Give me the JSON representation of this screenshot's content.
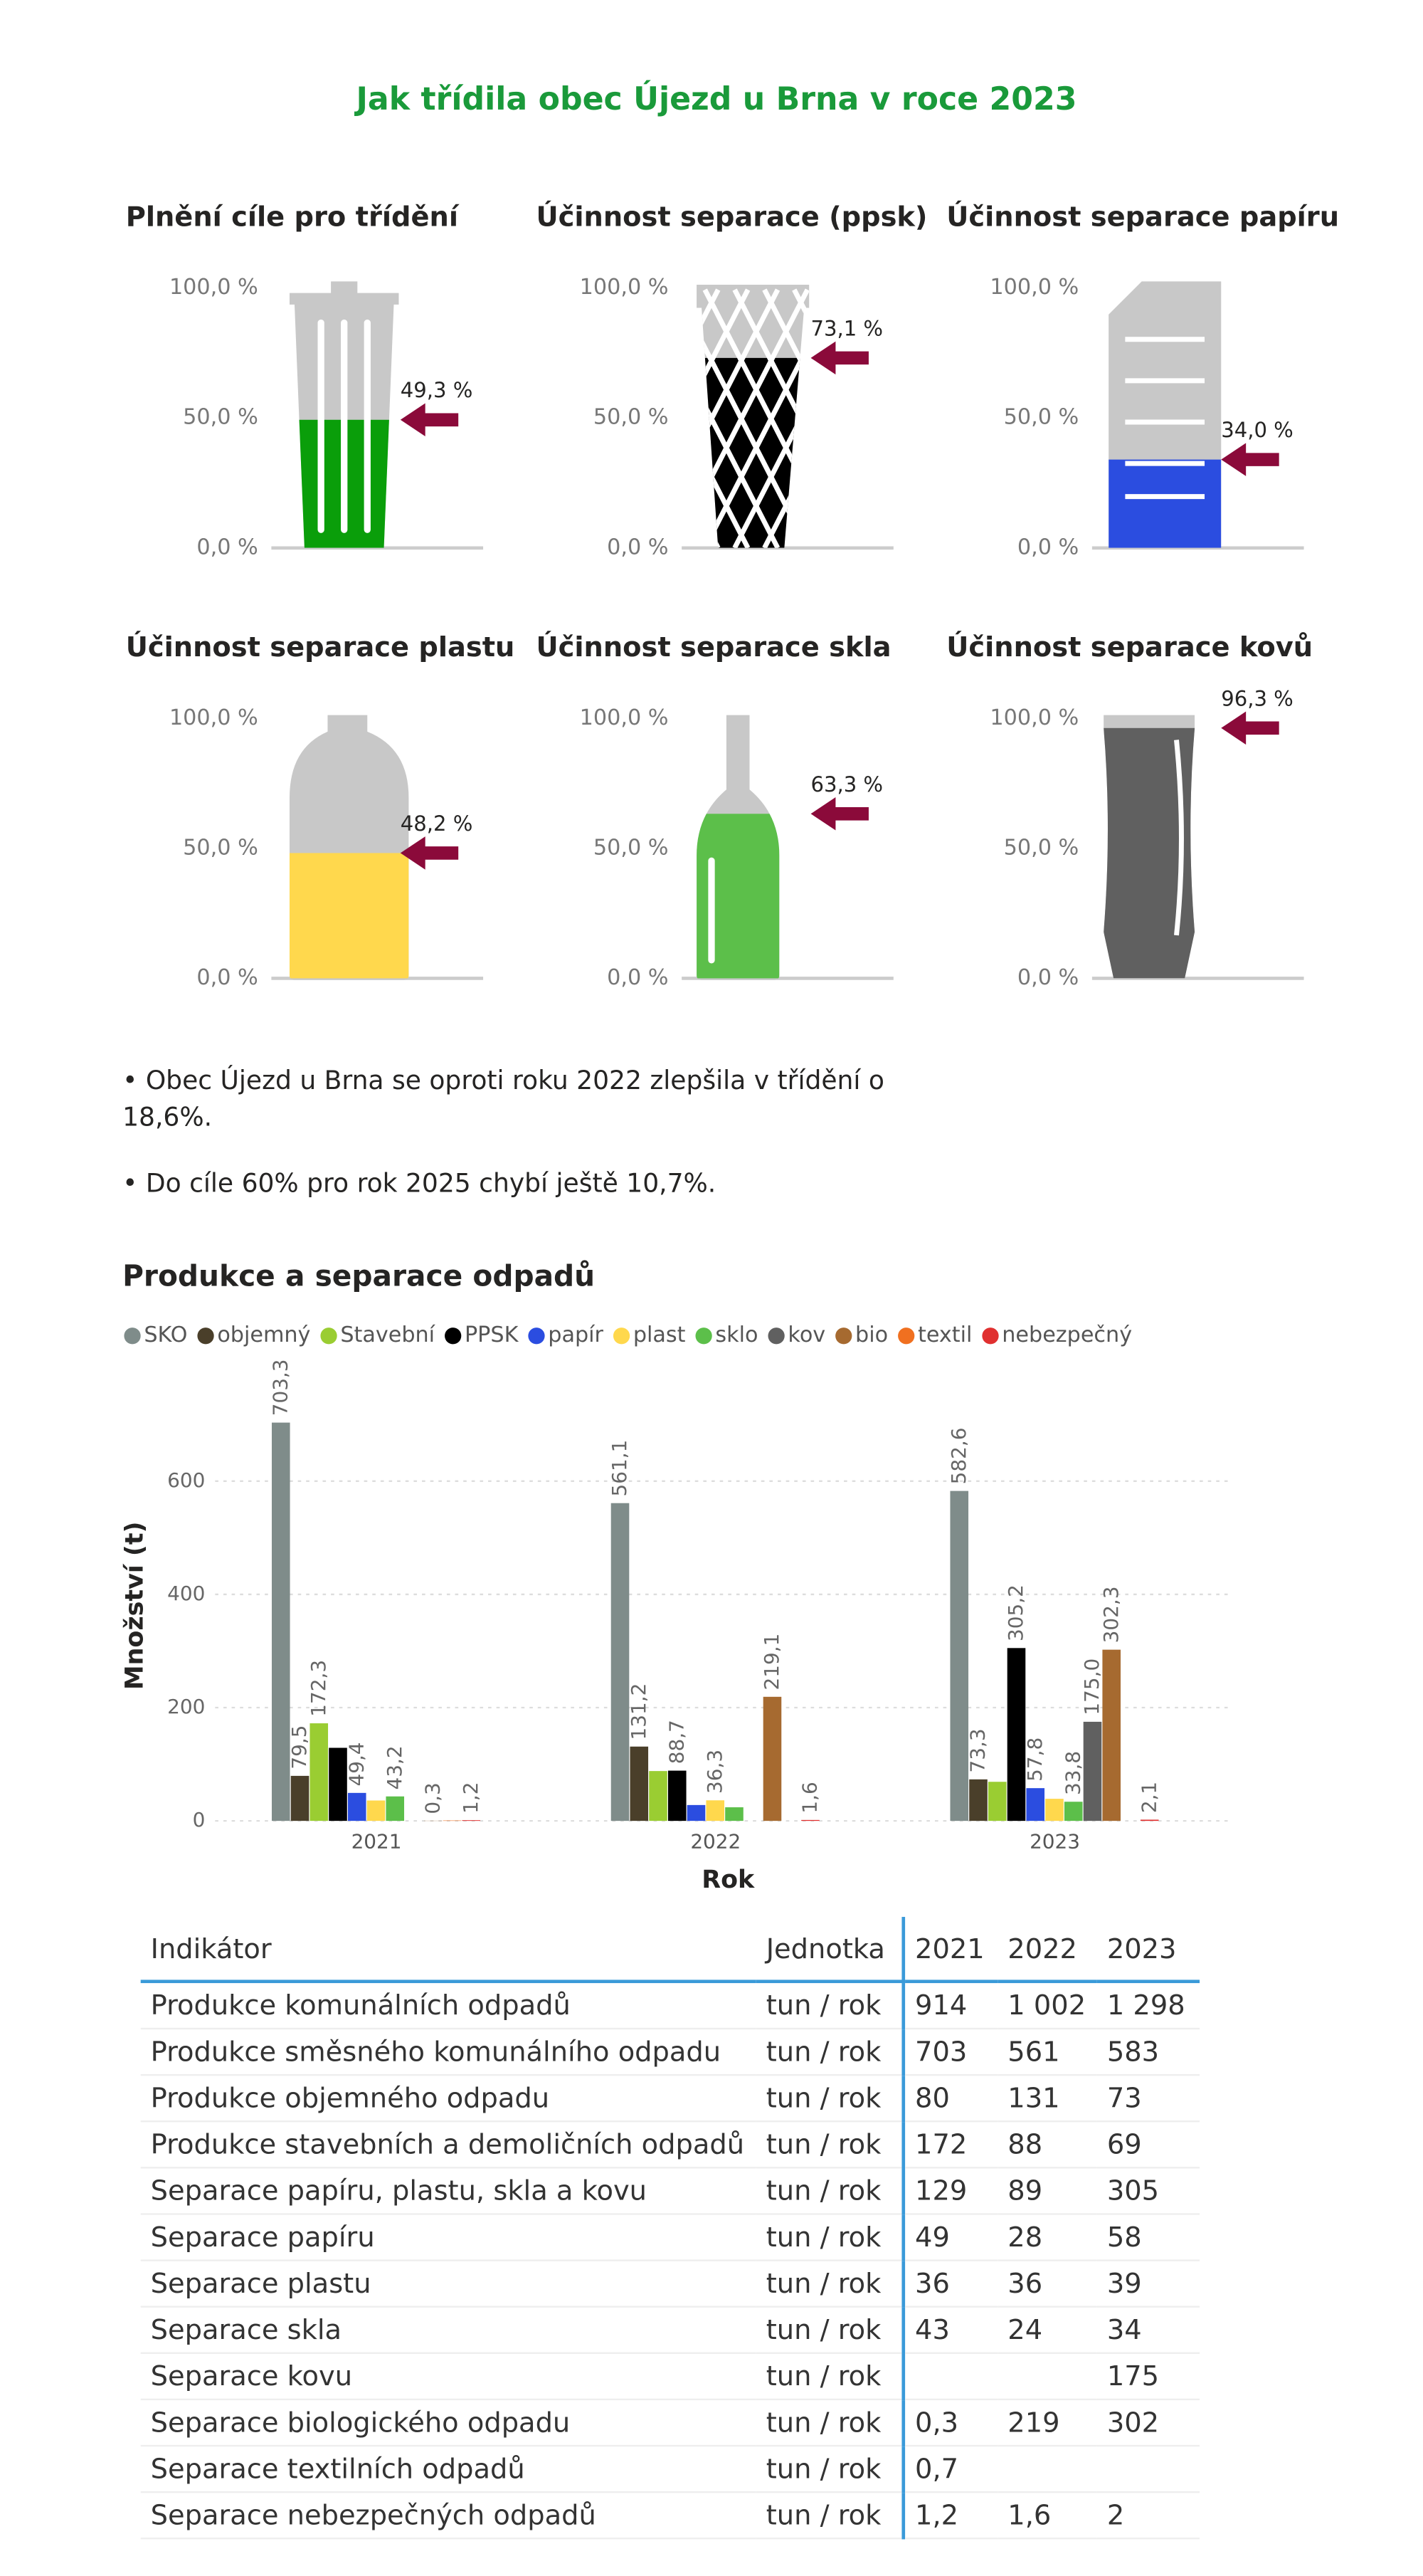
{
  "title": "Jak třídila obec Újezd u Brna v roce 2023",
  "chart_data": [
    {
      "type": "gauge",
      "title": "Plnění cíle pro třídění",
      "values": [
        49.3
      ],
      "value_labels": [
        "49,3 %"
      ],
      "color": "#0a9e0a",
      "ylim": [
        0,
        100
      ],
      "yticks": [
        {
          "value": 0,
          "label": "0,0 %"
        },
        {
          "value": 50,
          "label": "50,0 %"
        },
        {
          "value": 100,
          "label": "100,0 %"
        }
      ]
    },
    {
      "type": "gauge",
      "title": "Účinnost separace (ppsk)",
      "values": [
        73.1
      ],
      "value_labels": [
        "73,1 %"
      ],
      "color": "#000000",
      "ylim": [
        0,
        100
      ],
      "yticks": [
        {
          "value": 0,
          "label": "0,0 %"
        },
        {
          "value": 50,
          "label": "50,0 %"
        },
        {
          "value": 100,
          "label": "100,0 %"
        }
      ]
    },
    {
      "type": "gauge",
      "title": "Účinnost separace papíru",
      "values": [
        34.0
      ],
      "value_labels": [
        "34,0 %"
      ],
      "color": "#2b4de0",
      "ylim": [
        0,
        100
      ],
      "yticks": [
        {
          "value": 0,
          "label": "0,0 %"
        },
        {
          "value": 50,
          "label": "50,0 %"
        },
        {
          "value": 100,
          "label": "100,0 %"
        }
      ]
    },
    {
      "type": "gauge",
      "title": "Účinnost separace plastu",
      "values": [
        48.2
      ],
      "value_labels": [
        "48,2 %"
      ],
      "color": "#ffd84d",
      "ylim": [
        0,
        100
      ],
      "yticks": [
        {
          "value": 0,
          "label": "0,0 %"
        },
        {
          "value": 50,
          "label": "50,0 %"
        },
        {
          "value": 100,
          "label": "100,0 %"
        }
      ]
    },
    {
      "type": "gauge",
      "title": "Účinnost separace skla",
      "values": [
        63.3
      ],
      "value_labels": [
        "63,3 %"
      ],
      "color": "#5cbf4a",
      "ylim": [
        0,
        100
      ],
      "yticks": [
        {
          "value": 0,
          "label": "0,0 %"
        },
        {
          "value": 50,
          "label": "50,0 %"
        },
        {
          "value": 100,
          "label": "100,0 %"
        }
      ]
    },
    {
      "type": "gauge",
      "title": "Účinnost separace kovů",
      "values": [
        96.3
      ],
      "value_labels": [
        "96,3 %"
      ],
      "color": "#606060",
      "ylim": [
        0,
        100
      ],
      "yticks": [
        {
          "value": 0,
          "label": "0,0 %"
        },
        {
          "value": 50,
          "label": "50,0 %"
        },
        {
          "value": 100,
          "label": "100,0 %"
        }
      ]
    },
    {
      "type": "bar",
      "title": "Produkce a separace odpadů",
      "x_label": "Rok",
      "y_label": "Množství (t)",
      "categories": [
        "2021",
        "2022",
        "2023"
      ],
      "series": [
        {
          "name": "SKO",
          "color": "#7f8c8a",
          "values": [
            703.3,
            561.1,
            582.6
          ],
          "value_labels": [
            "703,3",
            "561,1",
            "582,6"
          ]
        },
        {
          "name": "objemný",
          "color": "#4a3f2a",
          "values": [
            79.5,
            131.2,
            73.3
          ],
          "value_labels": [
            "79,5",
            "131,2",
            "73,3"
          ]
        },
        {
          "name": "Stavební",
          "color": "#9acd32",
          "values": [
            172.3,
            88,
            69
          ],
          "value_labels": [
            "172,3",
            null,
            null
          ]
        },
        {
          "name": "PPSK",
          "color": "#000000",
          "values": [
            129,
            88.7,
            305.2
          ],
          "value_labels": [
            null,
            "88,7",
            "305,2"
          ]
        },
        {
          "name": "papír",
          "color": "#2b4de0",
          "values": [
            49.4,
            28,
            57.8
          ],
          "value_labels": [
            "49,4",
            null,
            "57,8"
          ]
        },
        {
          "name": "plast",
          "color": "#ffd84d",
          "values": [
            36,
            36.3,
            39
          ],
          "value_labels": [
            null,
            "36,3",
            null
          ]
        },
        {
          "name": "sklo",
          "color": "#5cbf4a",
          "values": [
            43.2,
            24,
            33.8
          ],
          "value_labels": [
            "43,2",
            null,
            "33,8"
          ]
        },
        {
          "name": "kov",
          "color": "#606060",
          "values": [
            null,
            null,
            175.0
          ],
          "value_labels": [
            null,
            null,
            "175,0"
          ]
        },
        {
          "name": "bio",
          "color": "#a66a30",
          "values": [
            0.3,
            219.1,
            302.3
          ],
          "value_labels": [
            "0,3",
            "219,1",
            "302,3"
          ]
        },
        {
          "name": "textil",
          "color": "#f07020",
          "values": [
            0.7,
            null,
            null
          ],
          "value_labels": [
            null,
            null,
            null
          ]
        },
        {
          "name": "nebezpečný",
          "color": "#e03030",
          "values": [
            1.2,
            1.6,
            2.1
          ],
          "value_labels": [
            "1,2",
            "1,6",
            "2,1"
          ]
        }
      ],
      "ylim": [
        0,
        760
      ],
      "yticks": [
        0,
        200,
        400,
        600
      ],
      "grid": true,
      "legend": "top"
    }
  ],
  "notes": [
    "• Obec Újezd u Brna se oproti roku 2022 zlepšila v třídění o 18,6%.",
    "• Do cíle 60% pro rok 2025 chybí ještě 10,7%."
  ],
  "table": {
    "header": [
      "Indikátor",
      "Jednotka",
      "2021",
      "2022",
      "2023"
    ],
    "rows": [
      [
        "Produkce komunálních odpadů",
        "tun / rok",
        "914",
        "1 002",
        "1 298"
      ],
      [
        "Produkce směsného komunálního odpadu",
        "tun / rok",
        "703",
        "561",
        "583"
      ],
      [
        "Produkce objemného odpadu",
        "tun / rok",
        "80",
        "131",
        "73"
      ],
      [
        "Produkce stavebních a demoličních odpadů",
        "tun / rok",
        "172",
        "88",
        "69"
      ],
      [
        "Separace papíru, plastu, skla a kovu",
        "tun / rok",
        "129",
        "89",
        "305"
      ],
      [
        "Separace papíru",
        "tun / rok",
        "49",
        "28",
        "58"
      ],
      [
        "Separace plastu",
        "tun / rok",
        "36",
        "36",
        "39"
      ],
      [
        "Separace skla",
        "tun / rok",
        "43",
        "24",
        "34"
      ],
      [
        "Separace kovu",
        "tun / rok",
        null,
        null,
        "175"
      ],
      [
        "Separace biologického odpadu",
        "tun / rok",
        "0,3",
        "219",
        "302"
      ],
      [
        "Separace textilních odpadů",
        "tun / rok",
        "0,7",
        null,
        null
      ],
      [
        "Separace nebezpečných odpadů",
        "tun / rok",
        "1,2",
        "1,6",
        "2"
      ]
    ]
  }
}
